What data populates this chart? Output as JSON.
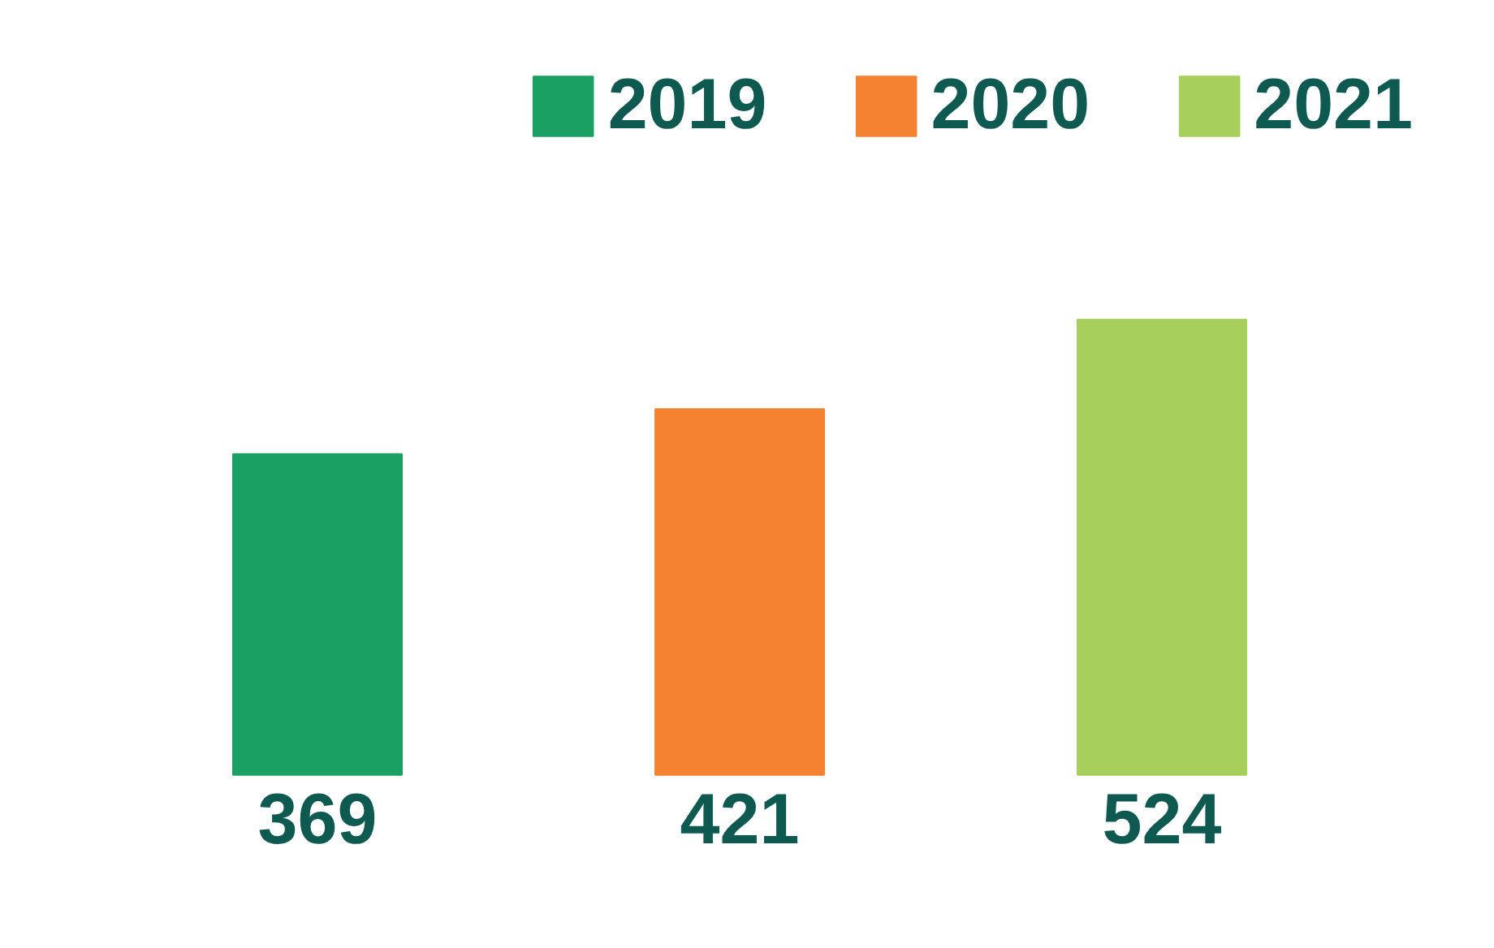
{
  "chart_data": {
    "type": "bar",
    "categories": [
      null,
      null,
      null
    ],
    "stacked": true,
    "series": [
      {
        "name": "2019",
        "color": "#1ba064",
        "values": [
          369,
          null,
          null
        ]
      },
      {
        "name": "2020",
        "color": "#f58231",
        "values": [
          null,
          421,
          null
        ]
      },
      {
        "name": "2021",
        "color": "#a6cf5c",
        "values": [
          null,
          null,
          524
        ]
      }
    ],
    "data_labels": true,
    "legend": "top right",
    "grid": false
  }
}
